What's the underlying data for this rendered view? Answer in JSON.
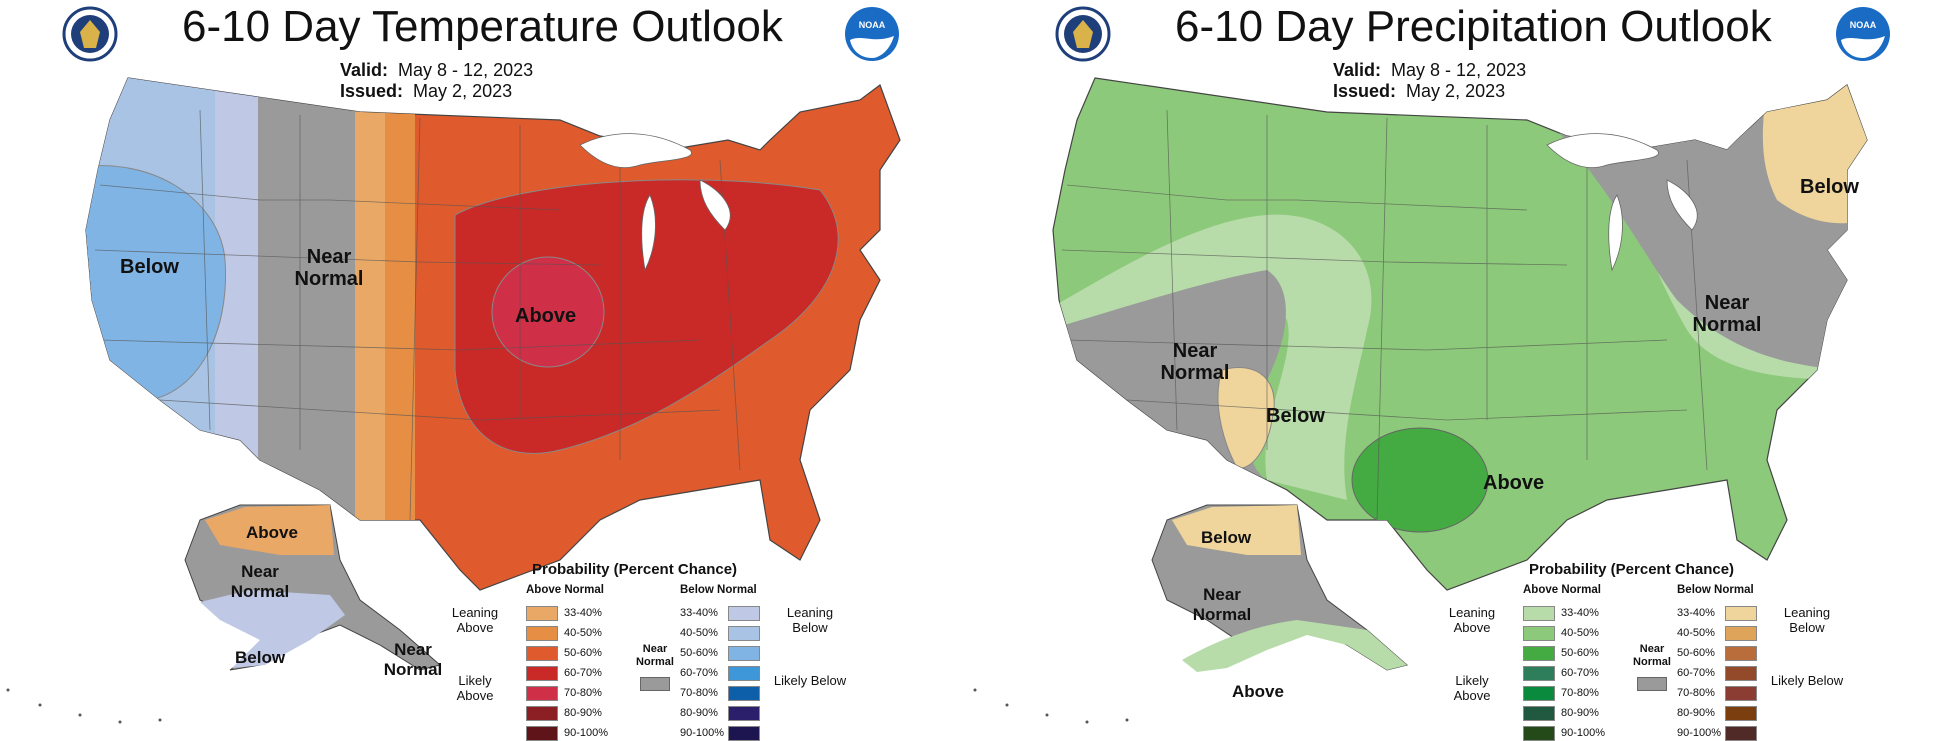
{
  "temperature": {
    "title": "6-10 Day Temperature Outlook",
    "valid_label": "Valid:",
    "valid_value": "May 8 - 12, 2023",
    "issued_label": "Issued:",
    "issued_value": "May 2, 2023",
    "regions": {
      "below": "Below",
      "near_normal_west": "Near Normal",
      "above": "Above",
      "ak_above": "Above",
      "ak_near_normal": "Near Normal",
      "ak_below": "Below",
      "ak_near_normal_se": "Near Normal"
    },
    "legend": {
      "title": "Probability (Percent Chance)",
      "above_header": "Above Normal",
      "below_header": "Below Normal",
      "leaning_above": "Leaning Above",
      "likely_above": "Likely Above",
      "leaning_below": "Leaning Below",
      "likely_below": "Likely Below",
      "near_normal": "Near Normal",
      "ranges": [
        "33-40%",
        "40-50%",
        "50-60%",
        "60-70%",
        "70-80%",
        "80-90%",
        "90-100%"
      ],
      "above_colors": [
        "#e9a866",
        "#e78e45",
        "#df5a2c",
        "#c92a28",
        "#cf2f47",
        "#8b1f24",
        "#5e1418"
      ],
      "below_colors": [
        "#bfc8e4",
        "#a8c3e4",
        "#7fb4e4",
        "#3d97d9",
        "#0e5faa",
        "#2b1f6b",
        "#1c1550"
      ]
    }
  },
  "precipitation": {
    "title": "6-10 Day Precipitation Outlook",
    "valid_label": "Valid:",
    "valid_value": "May 8 - 12, 2023",
    "issued_label": "Issued:",
    "issued_value": "May 2, 2023",
    "regions": {
      "below_ne": "Below",
      "near_normal_east": "Near Normal",
      "near_normal_west": "Near Normal",
      "below_sw": "Below",
      "above": "Above",
      "ak_below": "Below",
      "ak_near_normal": "Near Normal",
      "ak_above": "Above"
    },
    "legend": {
      "title": "Probability (Percent Chance)",
      "above_header": "Above Normal",
      "below_header": "Below Normal",
      "leaning_above": "Leaning Above",
      "likely_above": "Likely Above",
      "leaning_below": "Leaning Below",
      "likely_below": "Likely Below",
      "near_normal": "Near Normal",
      "ranges": [
        "33-40%",
        "40-50%",
        "50-60%",
        "60-70%",
        "70-80%",
        "80-90%",
        "90-100%"
      ],
      "above_colors": [
        "#b7dcaa",
        "#8dc97a",
        "#43ab42",
        "#2e7d5b",
        "#0a8a3d",
        "#215940",
        "#234a18"
      ],
      "below_colors": [
        "#efd49b",
        "#dea55a",
        "#b96d3a",
        "#924a2a",
        "#8b3c33",
        "#7a3e0f",
        "#4f2a26"
      ]
    }
  }
}
